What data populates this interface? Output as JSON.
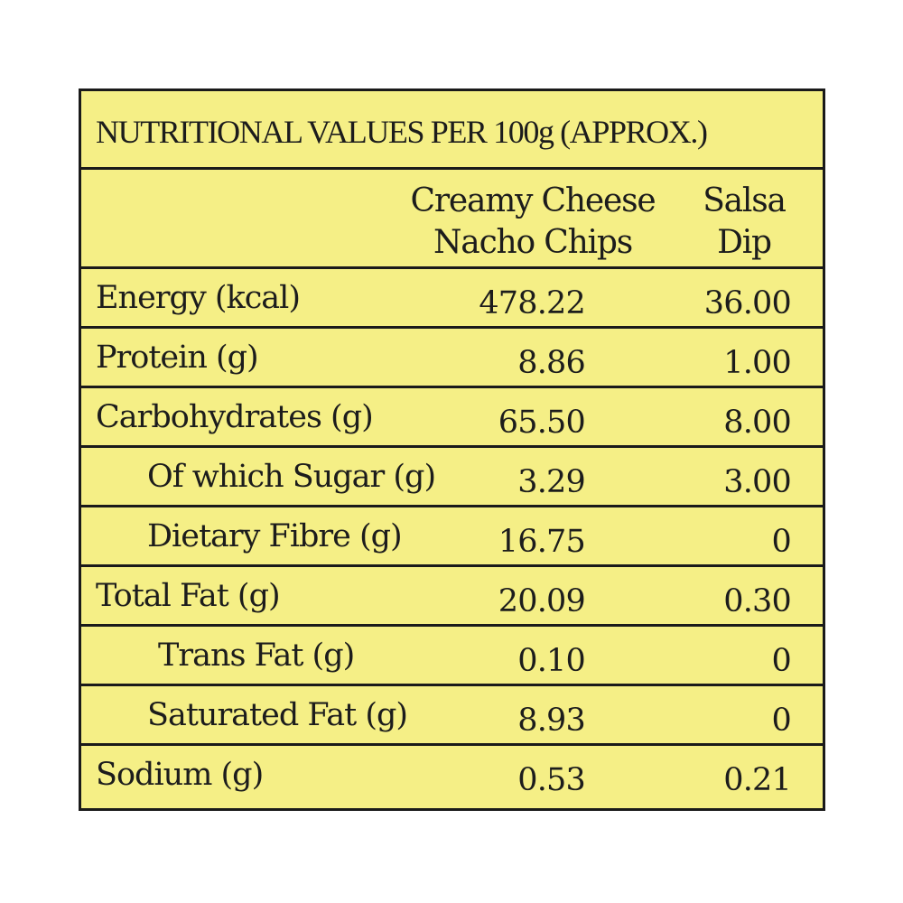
{
  "table": {
    "title": "NUTRITIONAL  VALUES PER 100g (APPROX.)",
    "columns": [
      {
        "line1": "Creamy Cheese",
        "line2": "Nacho Chips"
      },
      {
        "line1": "Salsa",
        "line2": "Dip"
      }
    ],
    "rows": [
      {
        "label": "Energy (kcal)",
        "chips": "478.22",
        "dip": "36.00"
      },
      {
        "label": "Protein (g)",
        "chips": "8.86",
        "dip": "1.00"
      },
      {
        "label": "Carbohydrates (g)",
        "chips": "65.50",
        "dip": "8.00"
      },
      {
        "label": "Of which Sugar (g)",
        "chips": "3.29",
        "dip": "3.00"
      },
      {
        "label": "Dietary Fibre (g)",
        "chips": "16.75",
        "dip": "0"
      },
      {
        "label": "Total Fat (g)",
        "chips": "20.09",
        "dip": "0.30"
      },
      {
        "label": "Trans Fat (g)",
        "chips": "0.10",
        "dip": "0"
      },
      {
        "label": "Saturated Fat (g)",
        "chips": "8.93",
        "dip": "0"
      },
      {
        "label": "Sodium (g)",
        "chips": "0.53",
        "dip": "0.21"
      }
    ]
  },
  "colors": {
    "background": "#f5ef86",
    "border": "#1a1a1a",
    "text": "#1c1c1c"
  }
}
